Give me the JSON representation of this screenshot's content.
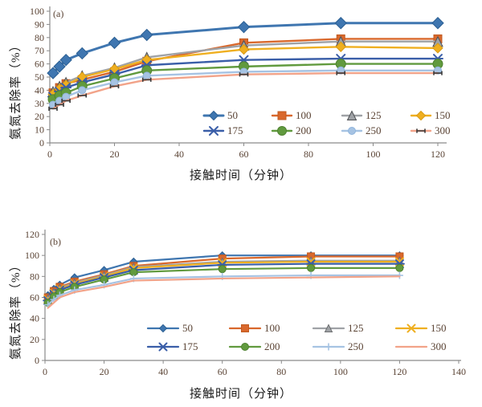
{
  "colors": {
    "axis": "#8A8A8A",
    "tick_text": "#5A4334",
    "label_text": "#1B1B1B"
  },
  "chart_data": [
    {
      "type": "line",
      "panel_label": "(a)",
      "xlabel": "接触时间（分钟）",
      "ylabel": "氨氮去除率（%）",
      "xlim": [
        0,
        120
      ],
      "ylim": [
        0,
        100
      ],
      "xticks": [
        0,
        20,
        40,
        60,
        80,
        100,
        120
      ],
      "yticks": [
        0,
        10,
        20,
        30,
        40,
        50,
        60,
        70,
        80,
        90,
        100
      ],
      "grid": false,
      "legend_position": "inside-lower-right",
      "x": [
        1,
        3,
        5,
        10,
        20,
        30,
        60,
        90,
        120
      ],
      "series": [
        {
          "name": "50",
          "color": "#3F76B0",
          "marker": "diamond",
          "marker_color": "#2B5F93",
          "lw": 3,
          "ms": 7,
          "values": [
            53,
            58,
            63,
            68,
            76,
            82,
            88,
            91,
            91
          ]
        },
        {
          "name": "100",
          "color": "#D9682C",
          "marker": "square",
          "marker_color": "#C05A20",
          "lw": 2.4,
          "ms": 5,
          "values": [
            38,
            42,
            45,
            48,
            54,
            62,
            76,
            79,
            79
          ]
        },
        {
          "name": "125",
          "color": "#9FA2A6",
          "marker": "triangle",
          "marker_color": "#4F5154",
          "lw": 2.4,
          "ms": 6,
          "values": [
            39,
            43,
            46,
            51,
            57,
            65,
            74,
            77,
            77
          ]
        },
        {
          "name": "150",
          "color": "#EFAF20",
          "marker": "diamond",
          "marker_color": "#D99B12",
          "lw": 2.4,
          "ms": 6,
          "values": [
            37,
            41,
            44,
            50,
            56,
            63,
            71,
            73,
            72
          ]
        },
        {
          "name": "175",
          "color": "#3A5EA8",
          "marker": "star",
          "marker_color": "#2F4F8F",
          "lw": 2.4,
          "ms": 5,
          "values": [
            35,
            39,
            42,
            46,
            52,
            59,
            63,
            64,
            64
          ]
        },
        {
          "name": "200",
          "color": "#619A3E",
          "marker": "circle",
          "marker_color": "#4E8230",
          "lw": 2.4,
          "ms": 6,
          "values": [
            33,
            36,
            38,
            43,
            49,
            55,
            58,
            60,
            60
          ]
        },
        {
          "name": "250",
          "color": "#A6C3E3",
          "marker": "circle",
          "marker_color": "#8FB4DC",
          "lw": 2.4,
          "ms": 4.5,
          "values": [
            29,
            32,
            35,
            40,
            46,
            51,
            54,
            55,
            55
          ]
        },
        {
          "name": "300",
          "color": "#F2A389",
          "marker": "dash",
          "marker_color": "#3A3A3A",
          "lw": 2.4,
          "ms": 5,
          "values": [
            26,
            29,
            32,
            36,
            43,
            48,
            52,
            53,
            53
          ]
        }
      ]
    },
    {
      "type": "line",
      "panel_label": "(b)",
      "xlabel": "接触时间（分钟）",
      "ylabel": "氨氮去除率（%）",
      "xlim": [
        0,
        140
      ],
      "ylim": [
        0,
        120
      ],
      "xticks": [
        0,
        20,
        40,
        60,
        80,
        100,
        120,
        140
      ],
      "yticks": [
        0,
        20,
        40,
        60,
        80,
        100,
        120
      ],
      "grid": false,
      "legend_position": "inside-lower-right",
      "x": [
        1,
        3,
        5,
        10,
        20,
        30,
        60,
        90,
        120
      ],
      "series": [
        {
          "name": "50",
          "color": "#3F76B0",
          "marker": "diamond",
          "marker_color": "#2B5F93",
          "lw": 2.2,
          "ms": 4.5,
          "values": [
            62,
            68,
            72,
            79,
            86,
            94,
            100,
            100,
            100
          ]
        },
        {
          "name": "100",
          "color": "#D9682C",
          "marker": "square",
          "marker_color": "#C05A20",
          "lw": 2.2,
          "ms": 4.5,
          "values": [
            60,
            66,
            70,
            75,
            82,
            90,
            97,
            99,
            99
          ]
        },
        {
          "name": "125",
          "color": "#9FA2A6",
          "marker": "triangle",
          "marker_color": "#6E7072",
          "lw": 2.2,
          "ms": 4.5,
          "values": [
            59,
            65,
            69,
            74,
            81,
            89,
            94,
            95,
            95
          ]
        },
        {
          "name": "150",
          "color": "#EFAF20",
          "marker": "x",
          "marker_color": "#D99B12",
          "lw": 2.2,
          "ms": 4.5,
          "values": [
            58,
            64,
            68,
            73,
            80,
            88,
            93,
            94,
            94
          ]
        },
        {
          "name": "175",
          "color": "#3A5EA8",
          "marker": "star",
          "marker_color": "#2F4F8F",
          "lw": 2.2,
          "ms": 4.5,
          "values": [
            57,
            63,
            67,
            72,
            79,
            86,
            91,
            92,
            92
          ]
        },
        {
          "name": "200",
          "color": "#619A3E",
          "marker": "circle",
          "marker_color": "#4E8230",
          "lw": 2.2,
          "ms": 4.5,
          "values": [
            55,
            61,
            65,
            70,
            77,
            84,
            87,
            88,
            88
          ]
        },
        {
          "name": "250",
          "color": "#A6C3E3",
          "marker": "plus",
          "marker_color": "#8FB4DC",
          "lw": 2.2,
          "ms": 4.5,
          "values": [
            53,
            58,
            62,
            67,
            72,
            78,
            80,
            81,
            81
          ]
        },
        {
          "name": "300",
          "color": "#F2A389",
          "marker": "none",
          "marker_color": "#F2A389",
          "lw": 2.2,
          "ms": 4,
          "values": [
            50,
            55,
            60,
            65,
            70,
            76,
            78,
            79,
            80
          ]
        }
      ]
    }
  ]
}
